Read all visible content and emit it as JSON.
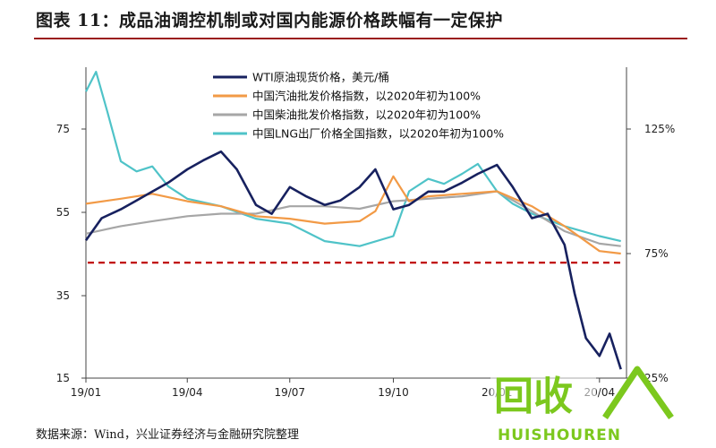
{
  "title": "图表 11：成品油调控机制或对国内能源价格跌幅有一定保护",
  "source": "数据来源：Wind，兴业证券经济与金融研究院整理",
  "watermark": {
    "logo_text": "回收",
    "brand": "HUISHOUREN",
    "color": "#7cc81e"
  },
  "chart_data": {
    "type": "line",
    "x_labels": [
      "19/01",
      "19/04",
      "19/07",
      "19/10",
      "20/01",
      "20/04"
    ],
    "x_range": [
      "2019-01",
      "2020-04"
    ],
    "y_left": {
      "ticks": [
        15,
        35,
        55,
        75
      ],
      "ylim": [
        15,
        85
      ]
    },
    "y_right": {
      "ticks": [
        "25%",
        "75%",
        "125%"
      ]
    },
    "reference_line": {
      "value": 41,
      "axis": "left",
      "color": "#c00000",
      "style": "dashed"
    },
    "series": [
      {
        "name": "WTI原油现货价格，美元/桶",
        "color": "#17215f",
        "axis": "left",
        "points": [
          [
            "2019-01",
            46
          ],
          [
            "2019-01-15",
            51
          ],
          [
            "2019-02",
            53
          ],
          [
            "2019-02-15",
            55
          ],
          [
            "2019-03",
            57
          ],
          [
            "2019-03-15",
            59
          ],
          [
            "2019-04",
            62
          ],
          [
            "2019-04-15",
            64
          ],
          [
            "2019-05",
            66
          ],
          [
            "2019-05-15",
            62
          ],
          [
            "2019-06",
            54
          ],
          [
            "2019-06-15",
            52
          ],
          [
            "2019-07",
            58
          ],
          [
            "2019-07-15",
            56
          ],
          [
            "2019-08",
            54
          ],
          [
            "2019-08-15",
            55
          ],
          [
            "2019-09",
            58
          ],
          [
            "2019-09-15",
            62
          ],
          [
            "2019-10",
            53
          ],
          [
            "2019-10-15",
            54
          ],
          [
            "2019-11",
            57
          ],
          [
            "2019-11-15",
            57
          ],
          [
            "2019-12",
            59
          ],
          [
            "2019-12-15",
            61
          ],
          [
            "2020-01",
            63
          ],
          [
            "2020-01-15",
            58
          ],
          [
            "2020-02",
            51
          ],
          [
            "2020-02-15",
            52
          ],
          [
            "2020-03",
            45
          ],
          [
            "2020-03-10",
            34
          ],
          [
            "2020-03-20",
            24
          ],
          [
            "2020-04",
            20
          ],
          [
            "2020-04-10",
            25
          ],
          [
            "2020-04-20",
            17
          ]
        ]
      },
      {
        "name": "中国汽油批发价格指数，以2020年初为100%",
        "color": "#f29a46",
        "axis": "right",
        "points": [
          [
            "2019-01",
            95
          ],
          [
            "2019-02",
            97
          ],
          [
            "2019-03",
            99
          ],
          [
            "2019-04",
            96
          ],
          [
            "2019-05",
            94
          ],
          [
            "2019-06",
            90
          ],
          [
            "2019-07",
            89
          ],
          [
            "2019-08",
            87
          ],
          [
            "2019-09",
            88
          ],
          [
            "2019-09-15",
            92
          ],
          [
            "2019-10",
            106
          ],
          [
            "2019-10-15",
            96
          ],
          [
            "2019-11",
            98
          ],
          [
            "2019-12",
            99
          ],
          [
            "2020-01",
            100
          ],
          [
            "2020-02",
            94
          ],
          [
            "2020-03",
            86
          ],
          [
            "2020-04",
            76
          ],
          [
            "2020-04-20",
            75
          ]
        ]
      },
      {
        "name": "中国柴油批发价格指数，以2020年初为100%",
        "color": "#a6a6a6",
        "axis": "right",
        "points": [
          [
            "2019-01",
            83
          ],
          [
            "2019-02",
            86
          ],
          [
            "2019-03",
            88
          ],
          [
            "2019-04",
            90
          ],
          [
            "2019-05",
            91
          ],
          [
            "2019-06",
            91
          ],
          [
            "2019-07",
            94
          ],
          [
            "2019-08",
            94
          ],
          [
            "2019-09",
            93
          ],
          [
            "2019-10",
            96
          ],
          [
            "2019-11",
            97
          ],
          [
            "2019-12",
            98
          ],
          [
            "2020-01",
            100
          ],
          [
            "2020-02",
            92
          ],
          [
            "2020-03",
            84
          ],
          [
            "2020-04",
            79
          ],
          [
            "2020-04-20",
            78
          ]
        ]
      },
      {
        "name": "中国LNG出厂价格全国指数，以2020年初为100%",
        "color": "#4fc3c8",
        "axis": "right",
        "points": [
          [
            "2019-01",
            140
          ],
          [
            "2019-01-10",
            148
          ],
          [
            "2019-01-20",
            132
          ],
          [
            "2019-02",
            112
          ],
          [
            "2019-02-15",
            108
          ],
          [
            "2019-03",
            110
          ],
          [
            "2019-03-15",
            102
          ],
          [
            "2019-04",
            97
          ],
          [
            "2019-05",
            94
          ],
          [
            "2019-06",
            89
          ],
          [
            "2019-07",
            87
          ],
          [
            "2019-08",
            80
          ],
          [
            "2019-09",
            78
          ],
          [
            "2019-10",
            82
          ],
          [
            "2019-10-15",
            100
          ],
          [
            "2019-11",
            105
          ],
          [
            "2019-11-15",
            103
          ],
          [
            "2019-12",
            107
          ],
          [
            "2019-12-15",
            111
          ],
          [
            "2020-01",
            100
          ],
          [
            "2020-01-15",
            95
          ],
          [
            "2020-02",
            91
          ],
          [
            "2020-03",
            86
          ],
          [
            "2020-04",
            82
          ],
          [
            "2020-04-20",
            80
          ]
        ]
      }
    ]
  }
}
